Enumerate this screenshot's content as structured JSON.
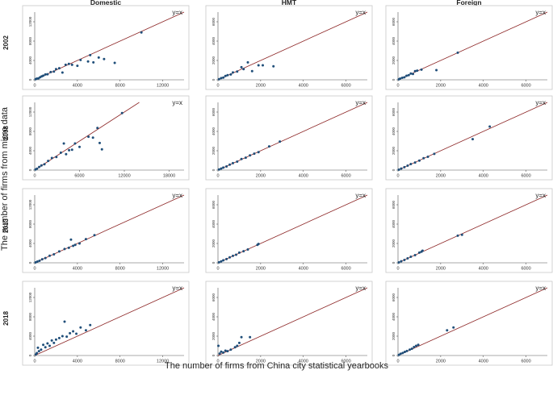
{
  "chart_data": {
    "type": "scatter",
    "title": "",
    "xlabel": "The number of firms from China city statistical yearbooks",
    "ylabel": "The number of firms from micro data",
    "columns": [
      "Domestic",
      "HMT",
      "Foreign"
    ],
    "rows": [
      "2002",
      "2008",
      "2013",
      "2018"
    ],
    "reference_line_label": "y=x",
    "colors": {
      "points": "#1f4e79",
      "line": "#8b2323",
      "frame": "#c8c8c8"
    },
    "panels": [
      {
        "row": "2002",
        "col": "Domestic",
        "xlim": [
          0,
          14000
        ],
        "ylim": [
          0,
          14000
        ],
        "xticks": [
          0,
          4000,
          8000,
          12000
        ],
        "yticks": [
          0,
          4000,
          8000,
          12000
        ],
        "points": [
          [
            80,
            120
          ],
          [
            200,
            250
          ],
          [
            350,
            300
          ],
          [
            500,
            520
          ],
          [
            650,
            700
          ],
          [
            800,
            850
          ],
          [
            1000,
            1100
          ],
          [
            1200,
            1150
          ],
          [
            1500,
            1600
          ],
          [
            1800,
            1700
          ],
          [
            2000,
            2200
          ],
          [
            2300,
            2400
          ],
          [
            2600,
            1500
          ],
          [
            2900,
            3100
          ],
          [
            3200,
            3300
          ],
          [
            3500,
            3100
          ],
          [
            4000,
            2900
          ],
          [
            4300,
            4100
          ],
          [
            5000,
            3800
          ],
          [
            5200,
            5100
          ],
          [
            5500,
            3600
          ],
          [
            6000,
            4600
          ],
          [
            6500,
            4300
          ],
          [
            7500,
            3500
          ],
          [
            10000,
            9800
          ]
        ]
      },
      {
        "row": "2002",
        "col": "HMT",
        "xlim": [
          0,
          7000
        ],
        "ylim": [
          0,
          7000
        ],
        "xticks": [
          0,
          2000,
          4000,
          6000
        ],
        "yticks": [
          0,
          2000,
          4000,
          6000
        ],
        "points": [
          [
            50,
            60
          ],
          [
            150,
            180
          ],
          [
            250,
            230
          ],
          [
            350,
            400
          ],
          [
            450,
            480
          ],
          [
            600,
            550
          ],
          [
            700,
            760
          ],
          [
            900,
            850
          ],
          [
            1100,
            1300
          ],
          [
            1200,
            1100
          ],
          [
            1400,
            1800
          ],
          [
            1600,
            900
          ],
          [
            1900,
            1500
          ],
          [
            2100,
            1500
          ],
          [
            2600,
            1400
          ]
        ]
      },
      {
        "row": "2002",
        "col": "Foreign",
        "xlim": [
          0,
          7000
        ],
        "ylim": [
          0,
          7000
        ],
        "xticks": [
          0,
          2000,
          4000,
          6000
        ],
        "yticks": [
          0,
          2000,
          4000,
          6000
        ],
        "points": [
          [
            40,
            50
          ],
          [
            100,
            120
          ],
          [
            200,
            210
          ],
          [
            300,
            260
          ],
          [
            400,
            420
          ],
          [
            500,
            480
          ],
          [
            600,
            650
          ],
          [
            700,
            600
          ],
          [
            800,
            900
          ],
          [
            900,
            950
          ],
          [
            1100,
            1050
          ],
          [
            1800,
            1000
          ],
          [
            2800,
            2800
          ]
        ]
      },
      {
        "row": "2008",
        "col": "Domestic",
        "xlim": [
          0,
          20000
        ],
        "ylim": [
          0,
          14000
        ],
        "xticks": [
          0,
          6000,
          12000,
          18000
        ],
        "yticks": [
          0,
          4000,
          8000,
          12000
        ],
        "points": [
          [
            100,
            120
          ],
          [
            300,
            300
          ],
          [
            600,
            650
          ],
          [
            900,
            950
          ],
          [
            1300,
            1200
          ],
          [
            1800,
            1900
          ],
          [
            2300,
            2500
          ],
          [
            2900,
            2700
          ],
          [
            3500,
            3600
          ],
          [
            3900,
            5500
          ],
          [
            4200,
            3300
          ],
          [
            4600,
            4100
          ],
          [
            5000,
            4200
          ],
          [
            5400,
            5500
          ],
          [
            6000,
            4800
          ],
          [
            7200,
            6900
          ],
          [
            7800,
            6700
          ],
          [
            8400,
            8700
          ],
          [
            8700,
            5600
          ],
          [
            9000,
            4300
          ],
          [
            11700,
            11800
          ]
        ]
      },
      {
        "row": "2008",
        "col": "HMT",
        "xlim": [
          0,
          7000
        ],
        "ylim": [
          0,
          7000
        ],
        "xticks": [
          0,
          2000,
          4000,
          6000
        ],
        "yticks": [
          0,
          2000,
          4000,
          6000
        ],
        "points": [
          [
            50,
            60
          ],
          [
            150,
            160
          ],
          [
            250,
            260
          ],
          [
            400,
            380
          ],
          [
            550,
            560
          ],
          [
            700,
            720
          ],
          [
            900,
            880
          ],
          [
            1100,
            1150
          ],
          [
            1300,
            1280
          ],
          [
            1500,
            1520
          ],
          [
            1700,
            1700
          ],
          [
            1900,
            1850
          ],
          [
            2400,
            2450
          ],
          [
            2900,
            2950
          ]
        ]
      },
      {
        "row": "2008",
        "col": "Foreign",
        "xlim": [
          0,
          7000
        ],
        "ylim": [
          0,
          7000
        ],
        "xticks": [
          0,
          2000,
          4000,
          6000
        ],
        "yticks": [
          0,
          2000,
          4000,
          6000
        ],
        "points": [
          [
            40,
            40
          ],
          [
            150,
            160
          ],
          [
            300,
            300
          ],
          [
            450,
            460
          ],
          [
            600,
            620
          ],
          [
            800,
            780
          ],
          [
            1000,
            980
          ],
          [
            1200,
            1230
          ],
          [
            1400,
            1380
          ],
          [
            1700,
            1680
          ],
          [
            3500,
            3200
          ],
          [
            4300,
            4500
          ]
        ]
      },
      {
        "row": "2013",
        "col": "Domestic",
        "xlim": [
          0,
          14000
        ],
        "ylim": [
          0,
          14000
        ],
        "xticks": [
          0,
          4000,
          8000,
          12000
        ],
        "yticks": [
          0,
          4000,
          8000,
          12000
        ],
        "points": [
          [
            80,
            90
          ],
          [
            250,
            260
          ],
          [
            450,
            420
          ],
          [
            700,
            720
          ],
          [
            1000,
            980
          ],
          [
            1400,
            1450
          ],
          [
            1800,
            1750
          ],
          [
            2300,
            2350
          ],
          [
            2800,
            2850
          ],
          [
            3200,
            3100
          ],
          [
            3400,
            4800
          ],
          [
            3600,
            3500
          ],
          [
            3800,
            3700
          ],
          [
            4200,
            4000
          ],
          [
            4800,
            4900
          ],
          [
            5600,
            5700
          ]
        ]
      },
      {
        "row": "2013",
        "col": "HMT",
        "xlim": [
          0,
          7000
        ],
        "ylim": [
          0,
          7000
        ],
        "xticks": [
          0,
          2000,
          4000,
          6000
        ],
        "yticks": [
          0,
          2000,
          4000,
          6000
        ],
        "points": [
          [
            50,
            50
          ],
          [
            150,
            150
          ],
          [
            250,
            260
          ],
          [
            400,
            390
          ],
          [
            550,
            560
          ],
          [
            700,
            720
          ],
          [
            850,
            830
          ],
          [
            1000,
            1050
          ],
          [
            1200,
            1200
          ],
          [
            1400,
            1380
          ],
          [
            1850,
            1850
          ],
          [
            1900,
            1950
          ]
        ]
      },
      {
        "row": "2013",
        "col": "Foreign",
        "xlim": [
          0,
          7000
        ],
        "ylim": [
          0,
          7000
        ],
        "xticks": [
          0,
          2000,
          4000,
          6000
        ],
        "yticks": [
          0,
          2000,
          4000,
          6000
        ],
        "points": [
          [
            40,
            40
          ],
          [
            150,
            160
          ],
          [
            300,
            290
          ],
          [
            450,
            460
          ],
          [
            600,
            620
          ],
          [
            800,
            790
          ],
          [
            1000,
            1050
          ],
          [
            1100,
            1150
          ],
          [
            1150,
            1250
          ],
          [
            2800,
            2800
          ],
          [
            3000,
            2900
          ]
        ]
      },
      {
        "row": "2018",
        "col": "Domestic",
        "xlim": [
          0,
          14000
        ],
        "ylim": [
          0,
          14000
        ],
        "xticks": [
          0,
          4000,
          8000,
          12000
        ],
        "yticks": [
          0,
          4000,
          8000,
          12000
        ],
        "points": [
          [
            100,
            200
          ],
          [
            200,
            500
          ],
          [
            300,
            1600
          ],
          [
            400,
            900
          ],
          [
            600,
            1200
          ],
          [
            800,
            2200
          ],
          [
            1000,
            1700
          ],
          [
            1200,
            2500
          ],
          [
            1400,
            2000
          ],
          [
            1600,
            3100
          ],
          [
            1800,
            2600
          ],
          [
            2000,
            3300
          ],
          [
            2300,
            3600
          ],
          [
            2600,
            4000
          ],
          [
            2800,
            7000
          ],
          [
            3000,
            3900
          ],
          [
            3300,
            4600
          ],
          [
            3600,
            5000
          ],
          [
            3900,
            4500
          ],
          [
            4300,
            5800
          ],
          [
            4800,
            5200
          ],
          [
            5200,
            6300
          ]
        ]
      },
      {
        "row": "2018",
        "col": "HMT",
        "xlim": [
          0,
          7000
        ],
        "ylim": [
          0,
          7000
        ],
        "xticks": [
          0,
          2000,
          4000,
          6000
        ],
        "yticks": [
          0,
          2000,
          4000,
          6000
        ],
        "points": [
          [
            20,
            1000
          ],
          [
            80,
            200
          ],
          [
            150,
            400
          ],
          [
            250,
            300
          ],
          [
            350,
            500
          ],
          [
            450,
            450
          ],
          [
            600,
            600
          ],
          [
            800,
            850
          ],
          [
            900,
            1000
          ],
          [
            1000,
            1300
          ],
          [
            1100,
            1900
          ],
          [
            1500,
            1900
          ]
        ]
      },
      {
        "row": "2018",
        "col": "Foreign",
        "xlim": [
          0,
          7000
        ],
        "ylim": [
          0,
          7000
        ],
        "xticks": [
          0,
          2000,
          4000,
          6000
        ],
        "yticks": [
          0,
          2000,
          4000,
          6000
        ],
        "points": [
          [
            40,
            60
          ],
          [
            120,
            180
          ],
          [
            220,
            260
          ],
          [
            320,
            380
          ],
          [
            420,
            470
          ],
          [
            550,
            600
          ],
          [
            650,
            700
          ],
          [
            750,
            880
          ],
          [
            850,
            1000
          ],
          [
            950,
            1100
          ],
          [
            2300,
            2600
          ],
          [
            2600,
            2900
          ]
        ]
      }
    ]
  }
}
